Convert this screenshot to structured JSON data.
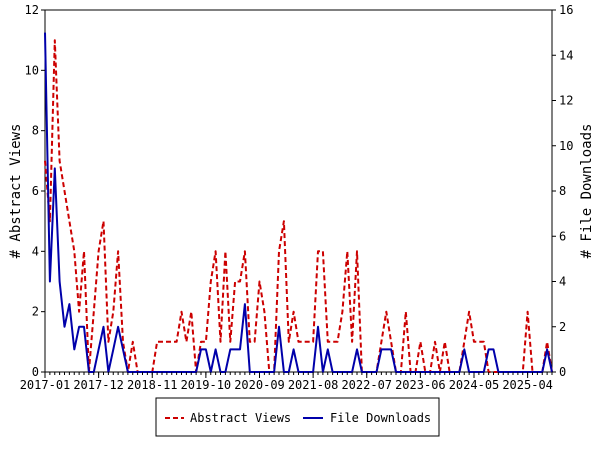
{
  "chart_data": {
    "type": "line",
    "title": "",
    "ylabel": "# Abstract Views",
    "y2label": "# File Downloads",
    "xlabel": "",
    "ylim": [
      0,
      12
    ],
    "y2lim": [
      0,
      16
    ],
    "yticks": [
      0,
      2,
      4,
      6,
      8,
      10,
      12
    ],
    "y2ticks": [
      0,
      2,
      4,
      6,
      8,
      10,
      12,
      14,
      16
    ],
    "xlim": [
      0,
      104
    ],
    "xticks": [
      {
        "x": 0,
        "label": "2017-01"
      },
      {
        "x": 11,
        "label": "2017-12"
      },
      {
        "x": 22,
        "label": "2018-11"
      },
      {
        "x": 33,
        "label": "2019-10"
      },
      {
        "x": 44,
        "label": "2020-09"
      },
      {
        "x": 55,
        "label": "2021-08"
      },
      {
        "x": 66,
        "label": "2022-07"
      },
      {
        "x": 77,
        "label": "2023-06"
      },
      {
        "x": 88,
        "label": "2024-05"
      },
      {
        "x": 99,
        "label": "2025-04"
      }
    ],
    "grid": false,
    "legend": "bottom-center",
    "series": [
      {
        "name": "Abstract Views",
        "axis": "left",
        "color": "#cc0000",
        "dash": true,
        "values": [
          7,
          5,
          11,
          7,
          6,
          5,
          4,
          2,
          4,
          0,
          2,
          4,
          5,
          1,
          2,
          4,
          1,
          0,
          1,
          0,
          0,
          0,
          0,
          1,
          1,
          1,
          1,
          1,
          2,
          1,
          2,
          0,
          1,
          1,
          3,
          4,
          1,
          4,
          1,
          3,
          3,
          4,
          1,
          1,
          3,
          2,
          0,
          0,
          4,
          5,
          1,
          2,
          1,
          1,
          1,
          1,
          4,
          4,
          1,
          1,
          1,
          2,
          4,
          1,
          4,
          0,
          0,
          0,
          0,
          1,
          2,
          1,
          0,
          0,
          2,
          0,
          0,
          1,
          0,
          0,
          1,
          0,
          1,
          0,
          0,
          0,
          1,
          2,
          1,
          1,
          1,
          0,
          0,
          0,
          0,
          0,
          0,
          0,
          0,
          2,
          0,
          0,
          0,
          1,
          0
        ]
      },
      {
        "name": "File Downloads",
        "axis": "right",
        "color": "#0000aa",
        "dash": false,
        "values": [
          15,
          4,
          9,
          4,
          2,
          3,
          1,
          2,
          2,
          0,
          0,
          1,
          2,
          0,
          1,
          2,
          1,
          0,
          0,
          0,
          0,
          0,
          0,
          0,
          0,
          0,
          0,
          0,
          0,
          0,
          0,
          0,
          1,
          1,
          0,
          1,
          0,
          0,
          1,
          1,
          1,
          3,
          0,
          0,
          0,
          0,
          0,
          0,
          2,
          0,
          0,
          1,
          0,
          0,
          0,
          0,
          2,
          0,
          1,
          0,
          0,
          0,
          0,
          0,
          1,
          0,
          0,
          0,
          0,
          1,
          1,
          1,
          0,
          0,
          0,
          0,
          0,
          0,
          0,
          0,
          0,
          0,
          0,
          0,
          0,
          0,
          1,
          0,
          0,
          0,
          0,
          1,
          1,
          0,
          0,
          0,
          0,
          0,
          0,
          0,
          0,
          0,
          0,
          1,
          0
        ]
      }
    ]
  }
}
